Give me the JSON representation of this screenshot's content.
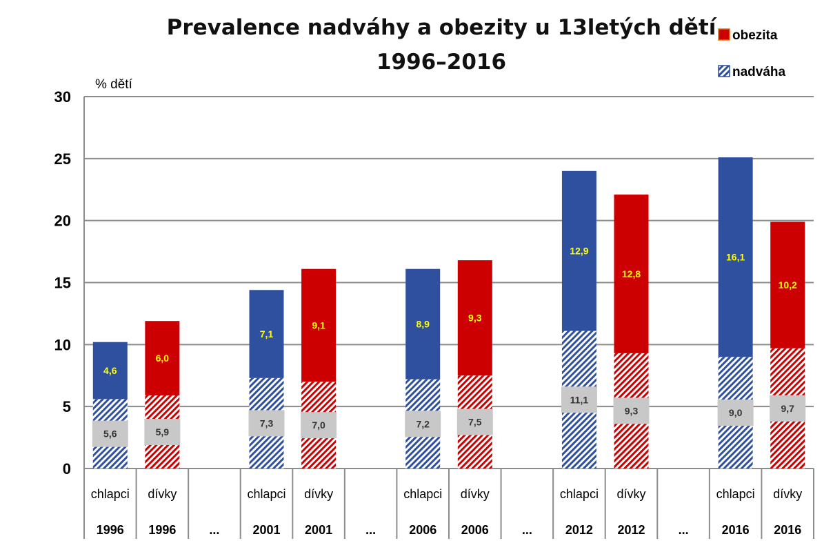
{
  "chart_data": {
    "type": "bar",
    "stacked": true,
    "title_line1": "Prevalence nadváhy a obezity u 13letých dětí",
    "title_line2": "1996–2016",
    "ylabel": "% dětí",
    "ylim": [
      0,
      30
    ],
    "yticks": [
      "0",
      "5",
      "10",
      "15",
      "20",
      "25",
      "30"
    ],
    "grid": true,
    "legend_position": "top-right",
    "legend": [
      {
        "key": "obezita",
        "label": "obezita",
        "color": "#cc0000"
      },
      {
        "key": "nadvaha",
        "label": "nadváha",
        "color": "#2f4f9f"
      }
    ],
    "categories": [
      {
        "label": "chlapci",
        "year": "1996",
        "group": "chlapci"
      },
      {
        "label": "dívky",
        "year": "1996",
        "group": "divky"
      },
      {
        "label": "",
        "year": "...",
        "group": "gap"
      },
      {
        "label": "chlapci",
        "year": "2001",
        "group": "chlapci"
      },
      {
        "label": "dívky",
        "year": "2001",
        "group": "divky"
      },
      {
        "label": "",
        "year": "...",
        "group": "gap"
      },
      {
        "label": "chlapci",
        "year": "2006",
        "group": "chlapci"
      },
      {
        "label": "dívky",
        "year": "2006",
        "group": "divky"
      },
      {
        "label": "",
        "year": "...",
        "group": "gap"
      },
      {
        "label": "chlapci",
        "year": "2012",
        "group": "chlapci"
      },
      {
        "label": "dívky",
        "year": "2012",
        "group": "divky"
      },
      {
        "label": "",
        "year": "...",
        "group": "gap"
      },
      {
        "label": "chlapci",
        "year": "2016",
        "group": "chlapci"
      },
      {
        "label": "dívky",
        "year": "2016",
        "group": "divky"
      }
    ],
    "series": [
      {
        "name": "nadváha",
        "key": "nadvaha",
        "values": [
          5.6,
          5.9,
          null,
          7.3,
          7.0,
          null,
          7.2,
          7.5,
          null,
          11.1,
          9.3,
          null,
          9.0,
          9.7
        ],
        "labels": [
          "5,6",
          "5,9",
          "",
          "7,3",
          "7,0",
          "",
          "7,2",
          "7,5",
          "",
          "11,1",
          "9,3",
          "",
          "9,0",
          "9,7"
        ]
      },
      {
        "name": "obezita",
        "key": "obezita",
        "values": [
          4.6,
          6.0,
          null,
          7.1,
          9.1,
          null,
          8.9,
          9.3,
          null,
          12.9,
          12.8,
          null,
          16.1,
          10.2
        ],
        "labels": [
          "4,6",
          "6,0",
          "",
          "7,1",
          "9,1",
          "",
          "8,9",
          "9,3",
          "",
          "12,9",
          "12,8",
          "",
          "16,1",
          "10,2"
        ]
      }
    ],
    "colors": {
      "chlapci": "#2f4f9f",
      "divky": "#cc0000",
      "label_obezita": "#ffff00",
      "label_box": "#c8c8c8",
      "grid": "#8c8c8c"
    }
  }
}
